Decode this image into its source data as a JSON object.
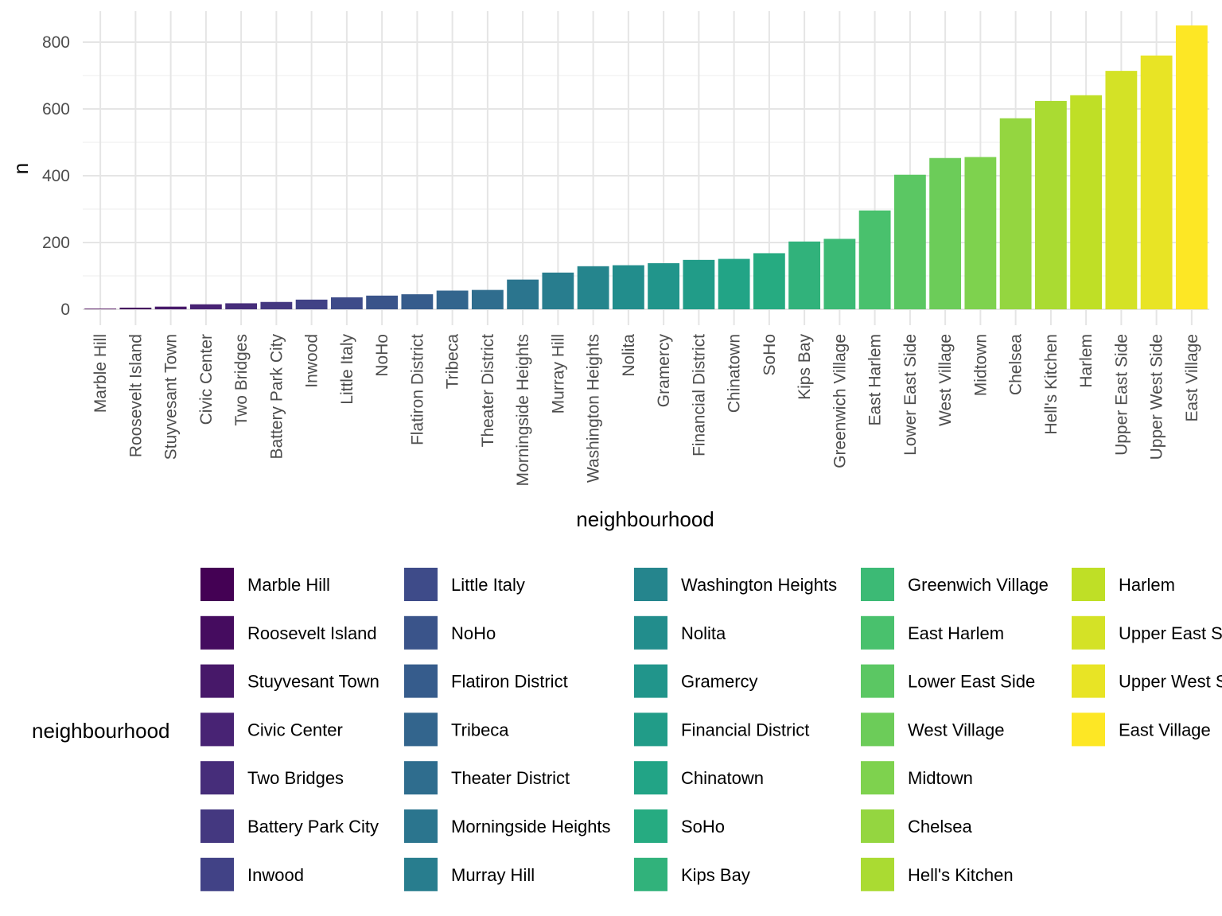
{
  "chart_data": {
    "type": "bar",
    "xlabel": "neighbourhood",
    "ylabel": "n",
    "ylim": [
      0,
      860
    ],
    "yticks": [
      0,
      200,
      400,
      600,
      800
    ],
    "grid": true,
    "legend_title": "neighbourhood",
    "legend_position": "bottom",
    "categories": [
      "Marble Hill",
      "Roosevelt Island",
      "Stuyvesant Town",
      "Civic Center",
      "Two Bridges",
      "Battery Park City",
      "Inwood",
      "Little Italy",
      "NoHo",
      "Flatiron District",
      "Tribeca",
      "Theater District",
      "Morningside Heights",
      "Murray Hill",
      "Washington Heights",
      "Nolita",
      "Gramercy",
      "Financial District",
      "Chinatown",
      "SoHo",
      "Kips Bay",
      "Greenwich Village",
      "East Harlem",
      "Lower East Side",
      "West Village",
      "Midtown",
      "Chelsea",
      "Hell's Kitchen",
      "Harlem",
      "Upper East Side",
      "Upper West Side",
      "East Village"
    ],
    "values": [
      2,
      5,
      8,
      15,
      18,
      22,
      29,
      36,
      41,
      45,
      56,
      58,
      89,
      110,
      129,
      132,
      138,
      148,
      151,
      168,
      203,
      211,
      296,
      403,
      453,
      456,
      572,
      624,
      641,
      714,
      760,
      850
    ],
    "colors": [
      "#440154",
      "#450559",
      "#46085c",
      "#470d60",
      "#471063",
      "#481467",
      "#481769",
      "#481b6d",
      "#481f70",
      "#482173",
      "#482576",
      "#482878",
      "#472c7a",
      "#472f7d",
      "#46327e",
      "#453581",
      "#453882",
      "#443b84",
      "#433e85",
      "#424086",
      "#404387",
      "#3f4788",
      "#3e4989",
      "#3d4d8a",
      "#3c4f8a",
      "#3a538b",
      "#39558c",
      "#38588c",
      "#375b8d",
      "#365d8d",
      "#34608d",
      "#33638d"
    ]
  }
}
